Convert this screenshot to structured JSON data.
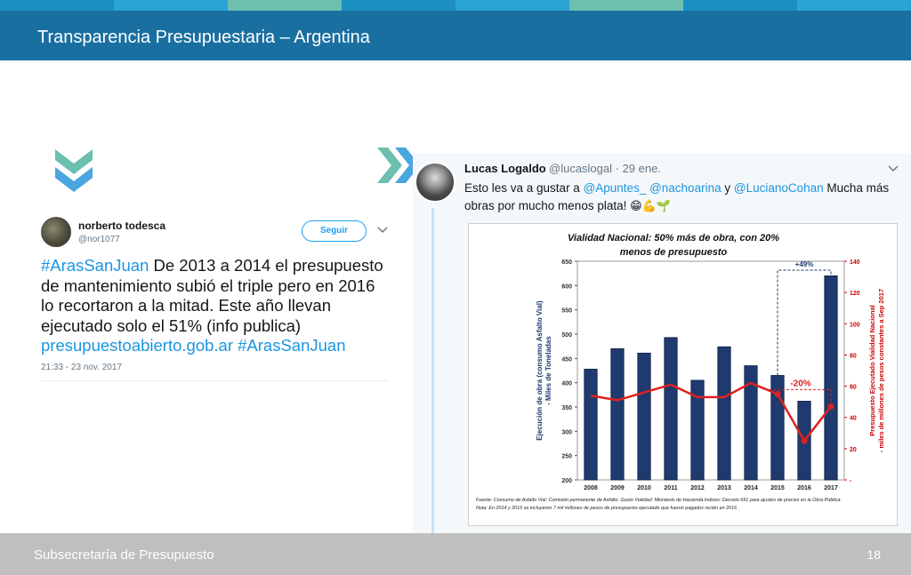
{
  "slide": {
    "title": "Transparencia Presupuestaria – Argentina",
    "footer_text": "Subsecretaría de Presupuesto",
    "page_number": "18",
    "stripe_colors": [
      "#1a8fc0",
      "#2aa5d3",
      "#6dbfb0",
      "#1a8fc0",
      "#2aa5d3",
      "#6dbfb0",
      "#1a8fc0",
      "#2aa5d3"
    ],
    "header_color": "#1a6fa1",
    "footer_color": "#bfbfbf"
  },
  "icons": {
    "down": "chevron-down-double-icon",
    "right": "chevron-right-double-icon"
  },
  "tweet_left": {
    "name": "norberto todesca",
    "handle": "@nor1077",
    "follow_label": "Seguir",
    "text_parts": {
      "hashtag1": "#ArasSanJuan",
      "body": " De 2013 a 2014 el presupuesto de mantenimiento subió el triple pero en 2016 lo recortaron a la mitad. Este año llevan ejecutado solo el 51% (info publica) ",
      "link": "presupuestoabierto.gob.ar",
      "hashtag2": " #ArasSanJuan"
    },
    "timestamp": "21:33 - 23 nov. 2017"
  },
  "tweet_right": {
    "name": "Lucas Logaldo",
    "handle": "@lucaslogal · 29 ene.",
    "text_parts": {
      "t1": "Esto les va a gustar a ",
      "m1": "@Apuntes_",
      "m2": " @nachoarina",
      "t2": " y ",
      "m3": "@LucianoCohan",
      "t3": " Mucha más obras por mucho menos plata! ",
      "emoji": "😁💪🌱"
    }
  },
  "chart_data": {
    "type": "bar",
    "title": "Vialidad Nacional: 50% más de obra, con 20% menos de presupuesto",
    "categories": [
      "2008",
      "2009",
      "2010",
      "2011",
      "2012",
      "2013",
      "2014",
      "2015",
      "2016",
      "2017"
    ],
    "series": [
      {
        "name": "Ejecución de obra (consumo Asfalto Vial) - Miles de Toneladas",
        "type": "bar",
        "axis": "left",
        "color": "#1f3a6e",
        "values": [
          428,
          470,
          461,
          493,
          405,
          474,
          435,
          415,
          362,
          620
        ]
      },
      {
        "name": "Presupuesto Ejecutado Vialidad Nacional - miles de millones de pesos constantes a Sep 2017",
        "type": "line",
        "axis": "right",
        "color": "#e02020",
        "values": [
          54,
          51,
          56,
          61,
          53,
          53,
          62,
          55,
          25,
          47
        ]
      }
    ],
    "ylabel": "Ejecución de obra (consumo Asfalto Vial) - Miles de Toneladas",
    "ylabel_right": "Presupuesto Ejecutado Vialidad Nacional - miles de millones de pesos constantes a Sep 2017",
    "ylim": [
      200,
      650
    ],
    "yticks": [
      "650",
      "600",
      "550",
      "500",
      "450",
      "400",
      "350",
      "300",
      "250",
      "200"
    ],
    "ylim_right": [
      0,
      140
    ],
    "yticks_right": [
      "140",
      "120",
      "100",
      "80",
      "60",
      "40",
      "20",
      "-"
    ],
    "annotations": {
      "up": "+49%",
      "down": "-20%"
    },
    "source_line1": "Fuente: Consumo de Asfalto Vial: Comisión permanente de Asfalto. Gasto Vialidad: Ministerio de Hacienda.Indices: Decreto 691 para ajustes de precios en la Obra Pública.",
    "source_line2": "Nota: En 2014 y 2015 se incluyeron 7 mil millones de pesos de presupuesto ejecutado que fueron pagados recién en 2016 ."
  }
}
